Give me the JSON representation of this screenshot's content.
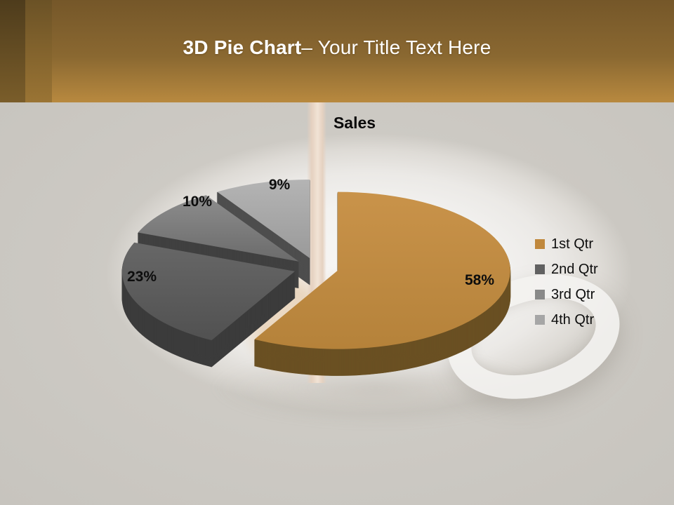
{
  "header": {
    "title_bold": "3D Pie Chart",
    "title_regular": "– Your Title Text Here"
  },
  "chart_data": {
    "type": "pie",
    "style": "3d-exploded-pie",
    "title": "Sales",
    "categories": [
      "1st Qtr",
      "2nd Qtr",
      "3rd Qtr",
      "4th Qtr"
    ],
    "values": [
      58,
      23,
      10,
      9
    ],
    "value_unit": "percent",
    "data_labels": [
      "58%",
      "23%",
      "10%",
      "9%"
    ],
    "legend_position": "right",
    "colors": {
      "tops_light": [
        "#c9934a",
        "#676767",
        "#8d8d8d",
        "#b4b4b4"
      ],
      "tops_dark": [
        "#b5823a",
        "#515151",
        "#6b6b6b",
        "#9a9a9a"
      ],
      "sides": [
        "#6a5023",
        "#3c3c3c",
        "#404040",
        "#4e4e4e"
      ],
      "legend_swatches": [
        "#c0883c",
        "#616161",
        "#898989",
        "#a6a6a6"
      ]
    }
  },
  "theme": {
    "header_gradient_top": "#755729",
    "header_gradient_bottom": "#b8893f",
    "body_background": "#cdcac4",
    "title_color": "#ffffff",
    "text_color": "#0d0d0d"
  }
}
